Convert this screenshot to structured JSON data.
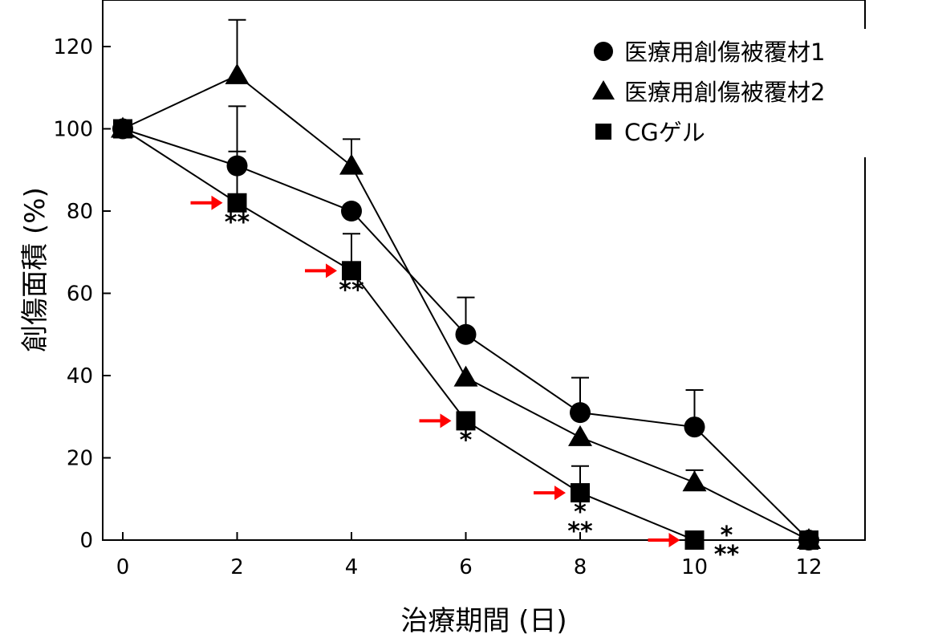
{
  "chart_data": {
    "type": "line",
    "xlabel": "治療期間 (日)",
    "ylabel": "創傷面積 (%)",
    "xlim": [
      0,
      13
    ],
    "ylim": [
      0,
      130
    ],
    "x_ticks": [
      0,
      2,
      4,
      6,
      8,
      10,
      12
    ],
    "y_ticks": [
      0,
      20,
      40,
      60,
      80,
      100,
      120
    ],
    "grid": false,
    "legend_position": "top-right",
    "series": [
      {
        "name": "医療用創傷被覆材1",
        "marker": "circle",
        "x": [
          0,
          2,
          4,
          6,
          8,
          10,
          12
        ],
        "y": [
          100,
          91,
          80,
          50,
          31,
          27.5,
          0
        ],
        "error_upper": [
          0,
          14.5,
          0,
          9,
          8.5,
          9,
          0
        ]
      },
      {
        "name": "医療用創傷被覆材2",
        "marker": "triangle",
        "x": [
          0,
          2,
          4,
          6,
          8,
          10,
          12
        ],
        "y": [
          100,
          113,
          91,
          39.5,
          25,
          14,
          0
        ],
        "error_upper": [
          0,
          13.5,
          6.5,
          0,
          0,
          3,
          0
        ]
      },
      {
        "name": "CGゲル",
        "marker": "square",
        "x": [
          0,
          2,
          4,
          6,
          8,
          10,
          12
        ],
        "y": [
          100,
          82,
          65.5,
          29,
          11.5,
          0,
          0
        ],
        "error_upper": [
          0,
          12.5,
          9,
          0,
          6.5,
          0,
          0
        ]
      }
    ],
    "annotations": [
      {
        "x": 2,
        "arrow": true,
        "marks": [
          "**"
        ]
      },
      {
        "x": 4,
        "arrow": true,
        "marks": [
          "**"
        ]
      },
      {
        "x": 6,
        "arrow": true,
        "marks": [
          "*"
        ]
      },
      {
        "x": 8,
        "arrow": true,
        "marks": [
          "*",
          "**"
        ]
      },
      {
        "x": 10,
        "arrow": true,
        "marks": [
          "*",
          "**"
        ]
      }
    ],
    "colors": {
      "series": "#000000",
      "arrow": "#ff0000"
    }
  }
}
